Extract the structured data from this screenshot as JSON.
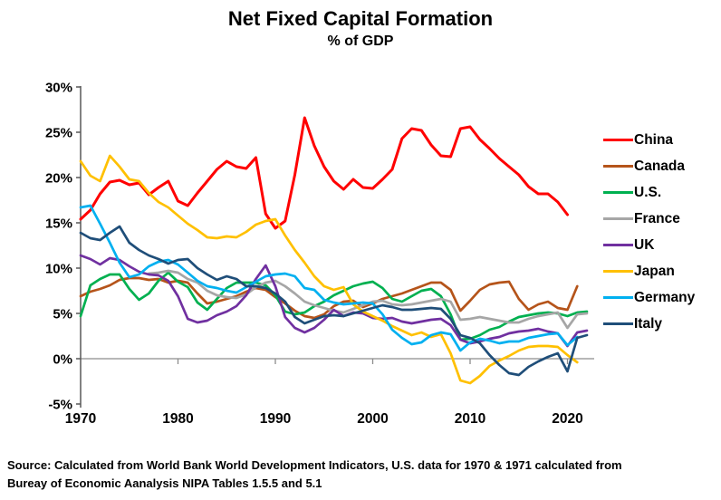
{
  "header": {
    "title": "Net Fixed Capital Formation",
    "subtitle": "% of GDP"
  },
  "source": {
    "line1": "Source:  Calculated from World Bank World Development Indicators, U.S. data for 1970 & 1971 calculated from",
    "line2": "Bureay of Economic Aanalysis NIPA Tables 1.5.5 and 5.1"
  },
  "chart_data": {
    "type": "line",
    "title": "Net Fixed Capital Formation",
    "subtitle": "% of GDP",
    "xlabel": "",
    "ylabel": "% of GDP",
    "xlim": [
      1970,
      2022.5
    ],
    "ylim": [
      -5,
      30
    ],
    "grid": "zero-line-only",
    "legend_position": "right",
    "x_ticks": [
      1970,
      1980,
      1990,
      2000,
      2010,
      2020
    ],
    "y_tick_labels": [
      "30%",
      "25%",
      "20%",
      "15%",
      "10%",
      "5%",
      "0%",
      "-5%"
    ],
    "y_tick_values": [
      30,
      25,
      20,
      15,
      10,
      5,
      0,
      -5
    ],
    "axis_color": "#595959",
    "zero_line_color": "#8c8c8c",
    "series": [
      {
        "name": "China",
        "color": "#FF0000",
        "start_year": 1970,
        "values": [
          15.4,
          16.4,
          18.2,
          19.5,
          19.7,
          19.2,
          19.4,
          18.1,
          18.9,
          19.6,
          17.4,
          16.9,
          18.3,
          19.6,
          20.9,
          21.8,
          21.2,
          21.0,
          22.2,
          16.0,
          14.4,
          15.2,
          20.3,
          26.6,
          23.5,
          21.2,
          19.6,
          18.7,
          19.8,
          18.9,
          18.8,
          19.8,
          20.9,
          24.3,
          25.4,
          25.2,
          23.6,
          22.4,
          22.3,
          25.4,
          25.6,
          24.2,
          23.2,
          22.1,
          21.2,
          20.3,
          19.0,
          18.2,
          18.2,
          17.3,
          15.9
        ]
      },
      {
        "name": "Canada",
        "color": "#B5541A",
        "start_year": 1970,
        "values": [
          6.9,
          7.4,
          7.7,
          8.1,
          8.7,
          8.9,
          8.9,
          8.7,
          8.8,
          8.4,
          8.6,
          8.4,
          7.2,
          6.1,
          6.3,
          6.6,
          6.9,
          7.4,
          7.8,
          7.6,
          6.8,
          6.1,
          5.3,
          4.7,
          4.5,
          4.9,
          5.8,
          6.3,
          6.4,
          5.7,
          6.1,
          6.6,
          6.9,
          7.2,
          7.6,
          8.0,
          8.4,
          8.4,
          7.6,
          5.3,
          6.4,
          7.6,
          8.2,
          8.4,
          8.5,
          6.6,
          5.4,
          6.0,
          6.3,
          5.6,
          5.4,
          8.0
        ]
      },
      {
        "name": "U.S.",
        "color": "#00B050",
        "start_year": 1970,
        "values": [
          4.7,
          8.1,
          8.8,
          9.3,
          9.3,
          7.7,
          6.5,
          7.2,
          8.6,
          9.5,
          8.5,
          7.9,
          6.2,
          5.4,
          6.6,
          7.8,
          8.4,
          8.4,
          8.4,
          8.1,
          7.0,
          5.2,
          4.9,
          5.1,
          5.8,
          6.3,
          7.0,
          7.5,
          8.0,
          8.3,
          8.5,
          7.8,
          6.6,
          6.3,
          6.9,
          7.5,
          7.7,
          6.9,
          4.9,
          2.1,
          2.2,
          2.6,
          3.2,
          3.5,
          4.1,
          4.6,
          4.8,
          5.0,
          5.1,
          5.0,
          4.7,
          5.1,
          5.2
        ]
      },
      {
        "name": "France",
        "color": "#A6A6A6",
        "start_year": 1977,
        "values": [
          9.4,
          9.5,
          9.7,
          9.5,
          8.8,
          8.4,
          7.5,
          7.0,
          6.8,
          6.7,
          7.1,
          7.9,
          8.4,
          8.6,
          8.0,
          7.2,
          6.3,
          5.9,
          5.6,
          5.3,
          5.1,
          5.5,
          5.9,
          6.3,
          6.4,
          6.0,
          5.9,
          6.0,
          6.2,
          6.4,
          6.6,
          6.3,
          4.3,
          4.4,
          4.6,
          4.4,
          4.2,
          4.0,
          4.0,
          4.4,
          4.7,
          4.9,
          5.1,
          3.4,
          4.9,
          5.0
        ]
      },
      {
        "name": "UK",
        "color": "#7030A0",
        "start_year": 1970,
        "values": [
          11.4,
          11.0,
          10.4,
          11.1,
          10.9,
          10.2,
          9.6,
          9.3,
          9.2,
          8.6,
          6.9,
          4.4,
          4.0,
          4.2,
          4.8,
          5.2,
          5.8,
          7.0,
          8.8,
          10.3,
          8.0,
          4.6,
          3.4,
          2.9,
          3.4,
          4.3,
          5.4,
          4.7,
          5.1,
          5.0,
          4.5,
          4.4,
          4.5,
          4.1,
          3.9,
          4.1,
          4.3,
          4.4,
          3.7,
          2.1,
          1.7,
          1.9,
          2.2,
          2.4,
          2.8,
          3.0,
          3.1,
          3.3,
          3.0,
          2.8,
          1.4,
          2.9,
          3.1
        ]
      },
      {
        "name": "Japan",
        "color": "#FFC000",
        "start_year": 1970,
        "values": [
          21.8,
          20.2,
          19.6,
          22.4,
          21.2,
          19.8,
          19.6,
          18.3,
          17.3,
          16.7,
          15.8,
          14.9,
          14.2,
          13.4,
          13.3,
          13.5,
          13.4,
          14.0,
          14.8,
          15.2,
          15.4,
          13.6,
          12.0,
          10.6,
          9.1,
          8.0,
          7.6,
          7.9,
          6.0,
          5.2,
          4.7,
          4.2,
          3.6,
          3.1,
          2.6,
          2.9,
          2.4,
          2.7,
          0.6,
          -2.4,
          -2.7,
          -1.9,
          -0.8,
          -0.2,
          0.3,
          0.9,
          1.3,
          1.4,
          1.4,
          1.3,
          0.4,
          -0.4
        ]
      },
      {
        "name": "Germany",
        "color": "#00B0F0",
        "start_year": 1970,
        "values": [
          16.7,
          16.9,
          14.9,
          12.8,
          10.6,
          9.0,
          9.3,
          10.2,
          10.7,
          10.9,
          10.4,
          9.5,
          8.6,
          8.0,
          7.8,
          7.5,
          7.3,
          7.9,
          8.5,
          9.1,
          9.3,
          9.4,
          9.1,
          7.8,
          7.6,
          6.5,
          6.2,
          6.0,
          6.1,
          6.2,
          6.1,
          4.9,
          3.2,
          2.3,
          1.6,
          1.8,
          2.6,
          2.9,
          2.7,
          0.9,
          1.8,
          2.2,
          2.0,
          1.7,
          1.9,
          1.9,
          2.3,
          2.5,
          2.7,
          2.8,
          1.5,
          2.4
        ]
      },
      {
        "name": "Italy",
        "color": "#1F4E79",
        "start_year": 1970,
        "values": [
          13.9,
          13.3,
          13.1,
          13.9,
          14.6,
          12.8,
          12.0,
          11.4,
          11.0,
          10.5,
          10.9,
          11.0,
          10.0,
          9.3,
          8.7,
          9.1,
          8.8,
          8.0,
          8.0,
          7.8,
          7.2,
          6.3,
          4.6,
          3.9,
          4.3,
          4.7,
          4.8,
          4.7,
          5.0,
          5.3,
          5.6,
          5.9,
          5.7,
          5.4,
          5.4,
          5.5,
          5.6,
          5.5,
          4.4,
          2.6,
          2.3,
          1.7,
          0.4,
          -0.7,
          -1.6,
          -1.8,
          -0.9,
          -0.3,
          0.2,
          0.6,
          -1.4,
          2.3,
          2.6
        ]
      }
    ]
  }
}
